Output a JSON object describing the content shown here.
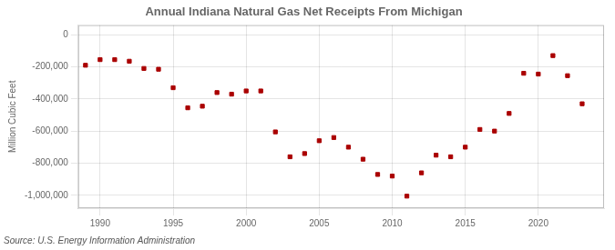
{
  "chart_data": {
    "type": "scatter",
    "title": "Annual Indiana Natural Gas Net Receipts From Michigan",
    "ylabel": "Million Cubic Feet",
    "annotations": [
      "Source: U.S. Energy Information Administration"
    ],
    "x": [
      1989,
      1990,
      1991,
      1992,
      1993,
      1994,
      1995,
      1996,
      1997,
      1998,
      1999,
      2000,
      2001,
      2002,
      2003,
      2004,
      2005,
      2006,
      2007,
      2008,
      2009,
      2010,
      2011,
      2012,
      2013,
      2014,
      2015,
      2016,
      2017,
      2018,
      2019,
      2020,
      2021,
      2022,
      2023
    ],
    "values": [
      -190000,
      -155000,
      -155000,
      -165000,
      -210000,
      -215000,
      -330000,
      -455000,
      -445000,
      -360000,
      -370000,
      -350000,
      -350000,
      -605000,
      -760000,
      -740000,
      -660000,
      -640000,
      -700000,
      -775000,
      -870000,
      -880000,
      -1005000,
      -860000,
      -750000,
      -760000,
      -700000,
      -590000,
      -600000,
      -490000,
      -240000,
      -245000,
      -130000,
      -255000,
      -430000
    ],
    "color": "#aa0000",
    "marker": "square",
    "xlim": [
      1988.5,
      2024.5
    ],
    "xticks": [
      1990,
      1995,
      2000,
      2005,
      2010,
      2015,
      2020
    ],
    "ylim": [
      -1080000,
      60000
    ],
    "yticks": [
      0,
      {
        "value": -200000,
        "label": "-200,000"
      },
      {
        "value": -400000,
        "label": "-400,000"
      },
      {
        "value": -600000,
        "label": "-600,000"
      },
      {
        "value": -800000,
        "label": "-800,000"
      },
      {
        "value": -1000000,
        "label": "-1,000,000"
      }
    ],
    "grid": true
  }
}
